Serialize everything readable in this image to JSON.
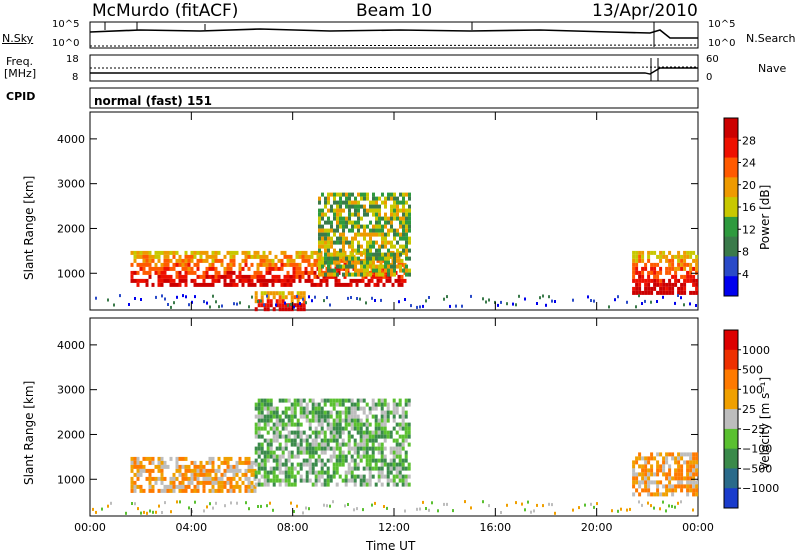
{
  "header": {
    "station": "McMurdo (fitACF)",
    "beam": "Beam 10",
    "date": "13/Apr/2010"
  },
  "top_panels": {
    "nsky_label": "N.Sky",
    "nsky_ticks": [
      "10^5",
      "10^0"
    ],
    "nsearch_label": "N.Search",
    "nsearch_ticks": [
      "10^5",
      "10^0"
    ],
    "freq_label": "Freq.",
    "freq_unit": "[MHz]",
    "freq_ticks": [
      "18",
      "8"
    ],
    "nave_label": "Nave",
    "nave_ticks": [
      "60",
      "0"
    ],
    "cpid_label": "CPID",
    "cpid_value": "normal (fast) 151"
  },
  "chart_data": [
    {
      "type": "heatmap",
      "name": "power-panel",
      "xlabel": "",
      "ylabel": "Slant Range [km]",
      "x_range_hours": [
        0,
        24
      ],
      "ylim": [
        180,
        4600
      ],
      "yticks": [
        "1000",
        "2000",
        "3000",
        "4000"
      ],
      "colorbar": {
        "label": "Power [dB]",
        "ticks": [
          "28",
          "24",
          "20",
          "16",
          "12",
          "8",
          "4"
        ],
        "colors": [
          "#0000ee",
          "#2a4ac8",
          "#3a7a4a",
          "#2e9a3e",
          "#c8c800",
          "#ee9a00",
          "#ff5a00",
          "#ee1000",
          "#cc0000"
        ]
      },
      "echo_regions": [
        {
          "start_h": 1.6,
          "end_h": 12.4,
          "low_km": 700,
          "high_km": 1500,
          "dominant": "red-orange"
        },
        {
          "start_h": 9.0,
          "end_h": 12.6,
          "low_km": 1000,
          "high_km": 2800,
          "dominant": "green"
        },
        {
          "start_h": 6.5,
          "end_h": 8.5,
          "low_km": 200,
          "high_km": 600,
          "dominant": "red"
        },
        {
          "start_h": 21.4,
          "end_h": 24.0,
          "low_km": 600,
          "high_km": 1500,
          "dominant": "red-orange"
        }
      ]
    },
    {
      "type": "heatmap",
      "name": "velocity-panel",
      "xlabel": "Time UT",
      "ylabel": "Slant Range [km]",
      "xticks": [
        "00:00",
        "04:00",
        "08:00",
        "12:00",
        "16:00",
        "20:00",
        "00:00"
      ],
      "x_range_hours": [
        0,
        24
      ],
      "ylim": [
        180,
        4600
      ],
      "yticks": [
        "1000",
        "2000",
        "3000",
        "4000"
      ],
      "colorbar": {
        "label": "Velocity [m s⁻¹]",
        "ticks": [
          "1000",
          "500",
          "100",
          "25",
          "−25",
          "−100",
          "−500",
          "−1000"
        ],
        "colors": [
          "#1a3ccc",
          "#2a6a8a",
          "#3a8a4a",
          "#5ac030",
          "#bdbdbd",
          "#f0a000",
          "#ff7a00",
          "#ee3000",
          "#dd0000"
        ]
      },
      "echo_regions": [
        {
          "start_h": 1.6,
          "end_h": 6.5,
          "low_km": 700,
          "high_km": 1500,
          "dominant": "orange"
        },
        {
          "start_h": 6.5,
          "end_h": 12.6,
          "low_km": 900,
          "high_km": 2800,
          "dominant": "green"
        },
        {
          "start_h": 21.4,
          "end_h": 24.0,
          "low_km": 700,
          "high_km": 1600,
          "dominant": "orange"
        }
      ]
    }
  ]
}
